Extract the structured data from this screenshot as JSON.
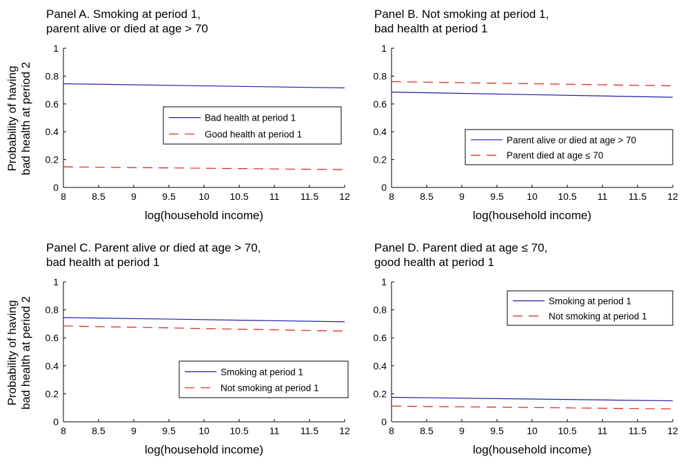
{
  "ylabel_line1": "Probability of having",
  "ylabel_line2": "bad health at period 2",
  "colors": {
    "blue": "#1a1aa8",
    "red": "#e01b1b"
  },
  "chart_data": [
    {
      "type": "line",
      "title_line1": "Panel A. Smoking at period 1,",
      "title_line2": "parent alive or died at age > 70",
      "xlabel": "log(household income)",
      "xlim": [
        8,
        12
      ],
      "ylim": [
        0,
        1
      ],
      "xticks": [
        "8",
        "8.5",
        "9",
        "9.5",
        "10",
        "10.5",
        "11",
        "11.5",
        "12"
      ],
      "yticks": [
        "0",
        "0.2",
        "0.4",
        "0.6",
        "0.8",
        "1"
      ],
      "legend_position": "center-right",
      "series": [
        {
          "name": "Bad health at period 1",
          "style": "solid",
          "color": "#1a1aa8",
          "x": [
            8,
            12
          ],
          "y": [
            0.745,
            0.715
          ]
        },
        {
          "name": "Good health at period 1",
          "style": "dashed",
          "color": "#e01b1b",
          "x": [
            8,
            12
          ],
          "y": [
            0.148,
            0.128
          ]
        }
      ]
    },
    {
      "type": "line",
      "title_line1": "Panel B. Not smoking at period 1,",
      "title_line2": "bad health at period 1",
      "xlabel": "log(household income)",
      "xlim": [
        8,
        12
      ],
      "ylim": [
        0,
        1
      ],
      "xticks": [
        "8",
        "8.5",
        "9",
        "9.5",
        "10",
        "10.5",
        "11",
        "11.5",
        "12"
      ],
      "yticks": [
        "0",
        "0.2",
        "0.4",
        "0.6",
        "0.8",
        "1"
      ],
      "legend_position": "lower-right",
      "series": [
        {
          "name": "Parent alive or died at age > 70",
          "style": "solid",
          "color": "#1a1aa8",
          "x": [
            8,
            12
          ],
          "y": [
            0.685,
            0.648
          ]
        },
        {
          "name": "Parent died at age ≤ 70",
          "style": "dashed",
          "color": "#e01b1b",
          "x": [
            8,
            12
          ],
          "y": [
            0.76,
            0.73
          ]
        }
      ]
    },
    {
      "type": "line",
      "title_line1": "Panel C. Parent alive or died at age > 70,",
      "title_line2": "bad health at period 1",
      "xlabel": "log(household income)",
      "xlim": [
        8,
        12
      ],
      "ylim": [
        0,
        1
      ],
      "xticks": [
        "8",
        "8.5",
        "9",
        "9.5",
        "10",
        "10.5",
        "11",
        "11.5",
        "12"
      ],
      "yticks": [
        "0",
        "0.2",
        "0.4",
        "0.6",
        "0.8",
        "1"
      ],
      "legend_position": "lower-right",
      "series": [
        {
          "name": "Smoking at period 1",
          "style": "solid",
          "color": "#1a1aa8",
          "x": [
            8,
            12
          ],
          "y": [
            0.745,
            0.715
          ]
        },
        {
          "name": "Not smoking at period 1",
          "style": "dashed",
          "color": "#e01b1b",
          "x": [
            8,
            12
          ],
          "y": [
            0.685,
            0.648
          ]
        }
      ]
    },
    {
      "type": "line",
      "title_line1": "Panel D. Parent died at age ≤ 70,",
      "title_line2": "good health at period 1",
      "xlabel": "log(household income)",
      "xlim": [
        8,
        12
      ],
      "ylim": [
        0,
        1
      ],
      "xticks": [
        "8",
        "8.5",
        "9",
        "9.5",
        "10",
        "10.5",
        "11",
        "11.5",
        "12"
      ],
      "yticks": [
        "0",
        "0.2",
        "0.4",
        "0.6",
        "0.8",
        "1"
      ],
      "legend_position": "upper-right",
      "series": [
        {
          "name": "Smoking at period 1",
          "style": "solid",
          "color": "#1a1aa8",
          "x": [
            8,
            12
          ],
          "y": [
            0.175,
            0.15
          ]
        },
        {
          "name": "Not smoking at period 1",
          "style": "dashed",
          "color": "#e01b1b",
          "x": [
            8,
            12
          ],
          "y": [
            0.112,
            0.092
          ]
        }
      ]
    }
  ]
}
